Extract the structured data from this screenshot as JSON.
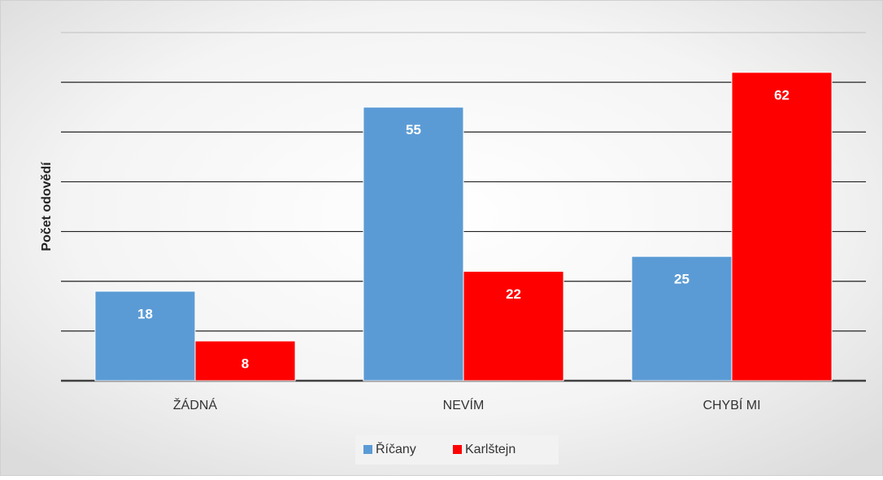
{
  "chart_data": {
    "type": "bar",
    "y_label": "Počet odovědí",
    "categories": [
      "ŽÁDNÁ",
      "NEVÍM",
      "CHYBÍ MI"
    ],
    "series": [
      {
        "name": "Říčany",
        "color": "#5b9bd5",
        "values": [
          18,
          55,
          25
        ]
      },
      {
        "name": "Karlštejn",
        "color": "#ff0000",
        "values": [
          8,
          22,
          62
        ]
      }
    ],
    "ylim": [
      0,
      70
    ],
    "yticks": [
      0,
      10,
      20,
      30,
      40,
      50,
      60,
      70
    ],
    "grid": true,
    "legend": "bottom"
  }
}
